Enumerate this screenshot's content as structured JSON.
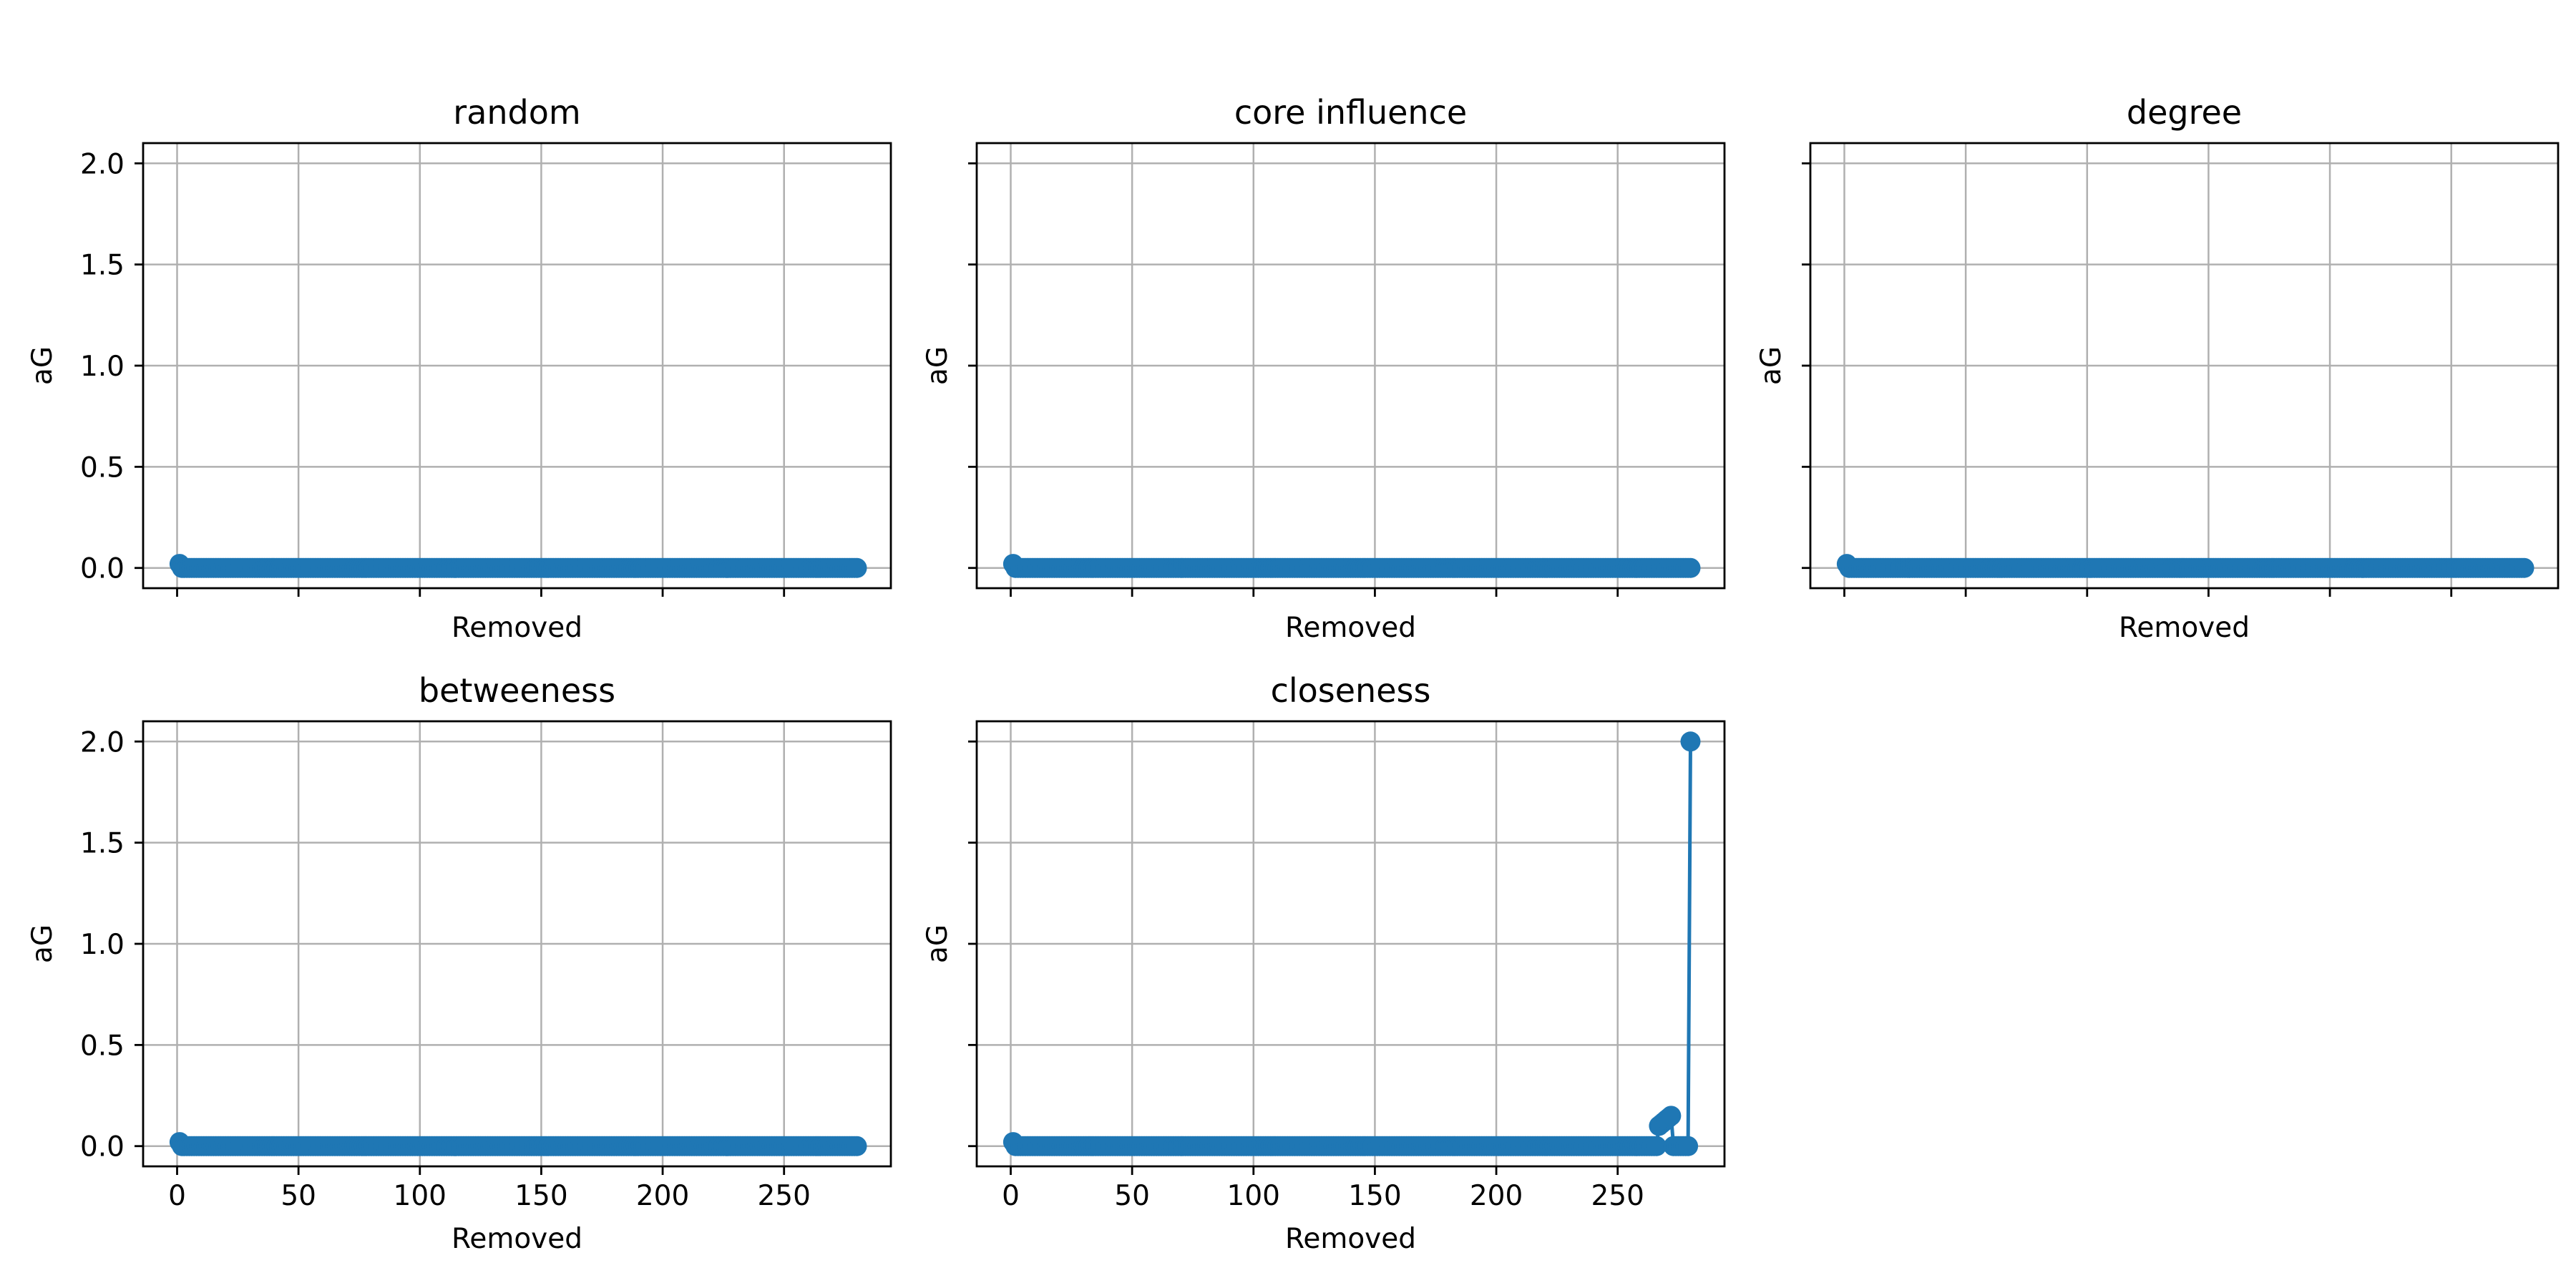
{
  "chart_data": [
    {
      "type": "line",
      "title": "random",
      "xlabel": "Removed",
      "ylabel": "aG",
      "xlim": [
        -14,
        294
      ],
      "ylim": [
        -0.1,
        2.1
      ],
      "xticks": [
        0,
        50,
        100,
        150,
        200,
        250
      ],
      "yticks": [
        0.0,
        0.5,
        1.0,
        1.5,
        2.0
      ],
      "xticklabels": [
        "0",
        "50",
        "100",
        "150",
        "200",
        "250"
      ],
      "yticklabels": [
        "0.0",
        "0.5",
        "1.0",
        "1.5",
        "2.0"
      ],
      "grid": true,
      "marker": "circle",
      "series": [
        {
          "x_range": [
            1,
            280
          ],
          "y_first": 0.02,
          "y_rest": 0.0,
          "points": []
        }
      ]
    },
    {
      "type": "line",
      "title": "core influence",
      "xlabel": "Removed",
      "ylabel": "aG",
      "xlim": [
        -14,
        294
      ],
      "ylim": [
        -0.1,
        2.1
      ],
      "xticks": [
        0,
        50,
        100,
        150,
        200,
        250
      ],
      "yticks": [
        0.0,
        0.5,
        1.0,
        1.5,
        2.0
      ],
      "grid": true,
      "marker": "circle",
      "series": [
        {
          "x_range": [
            1,
            280
          ],
          "y_first": 0.02,
          "y_rest": 0.0,
          "points": []
        }
      ]
    },
    {
      "type": "line",
      "title": "degree",
      "xlabel": "Removed",
      "ylabel": "aG",
      "xlim": [
        -14,
        294
      ],
      "ylim": [
        -0.1,
        2.1
      ],
      "xticks": [
        0,
        50,
        100,
        150,
        200,
        250
      ],
      "yticks": [
        0.0,
        0.5,
        1.0,
        1.5,
        2.0
      ],
      "grid": true,
      "marker": "circle",
      "series": [
        {
          "x_range": [
            1,
            280
          ],
          "y_first": 0.02,
          "y_rest": 0.0,
          "points": []
        }
      ]
    },
    {
      "type": "line",
      "title": "betweeness",
      "xlabel": "Removed",
      "ylabel": "aG",
      "xlim": [
        -14,
        294
      ],
      "ylim": [
        -0.1,
        2.1
      ],
      "xticks": [
        0,
        50,
        100,
        150,
        200,
        250
      ],
      "yticks": [
        0.0,
        0.5,
        1.0,
        1.5,
        2.0
      ],
      "xticklabels": [
        "0",
        "50",
        "100",
        "150",
        "200",
        "250"
      ],
      "yticklabels": [
        "0.0",
        "0.5",
        "1.0",
        "1.5",
        "2.0"
      ],
      "grid": true,
      "marker": "circle",
      "series": [
        {
          "x_range": [
            1,
            280
          ],
          "y_first": 0.02,
          "y_rest": 0.0,
          "points": []
        }
      ]
    },
    {
      "type": "line",
      "title": "closeness",
      "xlabel": "Removed",
      "ylabel": "aG",
      "xlim": [
        -14,
        294
      ],
      "ylim": [
        -0.1,
        2.1
      ],
      "xticks": [
        0,
        50,
        100,
        150,
        200,
        250
      ],
      "yticks": [
        0.0,
        0.5,
        1.0,
        1.5,
        2.0
      ],
      "xticklabels": [
        "0",
        "50",
        "100",
        "150",
        "200",
        "250"
      ],
      "grid": true,
      "marker": "circle",
      "series": [
        {
          "x_range": [
            1,
            280
          ],
          "y_first": 0.02,
          "y_rest": 0.0,
          "points": [
            [
              267,
              0.1
            ],
            [
              268,
              0.11
            ],
            [
              269,
              0.12
            ],
            [
              270,
              0.13
            ],
            [
              271,
              0.14
            ],
            [
              272,
              0.15
            ],
            [
              280,
              2.0
            ]
          ]
        }
      ]
    }
  ],
  "style": {
    "line_color": "#1f77b4",
    "grid_color": "#b0b0b0",
    "axes_color": "#000000"
  }
}
